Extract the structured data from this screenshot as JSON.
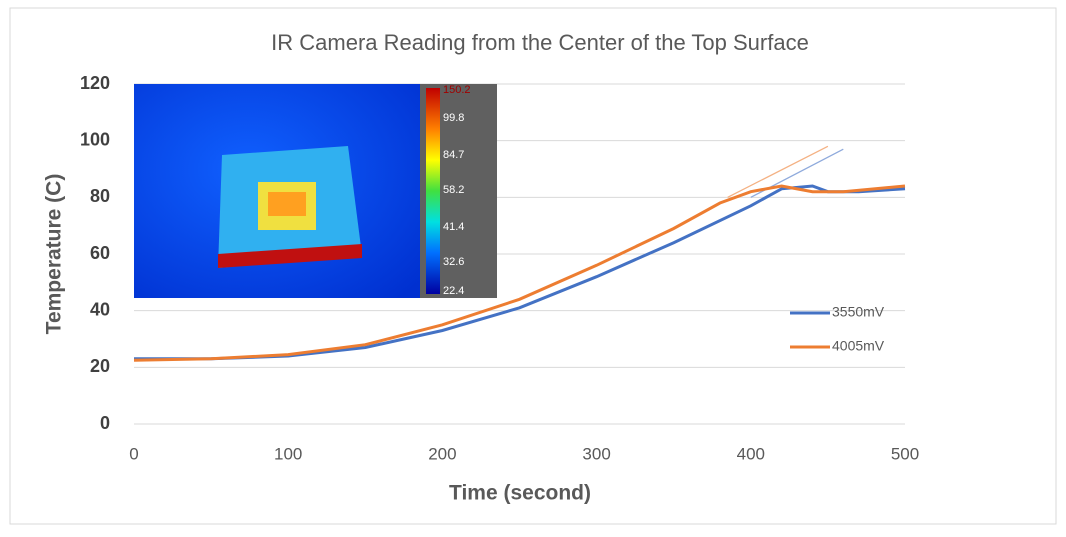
{
  "chart_data": {
    "type": "line",
    "title": "IR Camera Reading from the Center of the Top Surface",
    "xlabel": "Time (second)",
    "ylabel": "Temperature (C)",
    "xlim": [
      0,
      500
    ],
    "xticks": [
      0,
      100,
      200,
      300,
      400,
      500
    ],
    "ylim": [
      0,
      120
    ],
    "yticks": [
      0,
      20,
      40,
      60,
      80,
      100,
      120
    ],
    "grid": true,
    "legend": "right",
    "series": [
      {
        "name": "3550mV",
        "color": "#4472c4",
        "x": [
          0,
          50,
          100,
          150,
          200,
          250,
          300,
          350,
          400,
          420,
          440,
          450,
          470,
          500
        ],
        "values": [
          23,
          23,
          24,
          27,
          33,
          41,
          52,
          64,
          77,
          83,
          84,
          82,
          82,
          83
        ]
      },
      {
        "name": "4005mV",
        "color": "#ed7d31",
        "x": [
          0,
          50,
          100,
          150,
          200,
          250,
          300,
          350,
          380,
          400,
          420,
          440,
          460,
          500
        ],
        "values": [
          22.5,
          23,
          24.5,
          28,
          35,
          44,
          56,
          69,
          78,
          82,
          84,
          82,
          82,
          84
        ]
      }
    ],
    "trendlines": [
      {
        "color": "#f4b183",
        "x": [
          385,
          450
        ],
        "values": [
          80,
          98
        ]
      },
      {
        "color": "#8faadc",
        "x": [
          400,
          460
        ],
        "values": [
          80,
          97
        ]
      }
    ]
  },
  "inset": {
    "colorbar_labels": [
      "150.2",
      "99.8",
      "84.7",
      "58.2",
      "41.4",
      "32.6",
      "22.4"
    ]
  }
}
